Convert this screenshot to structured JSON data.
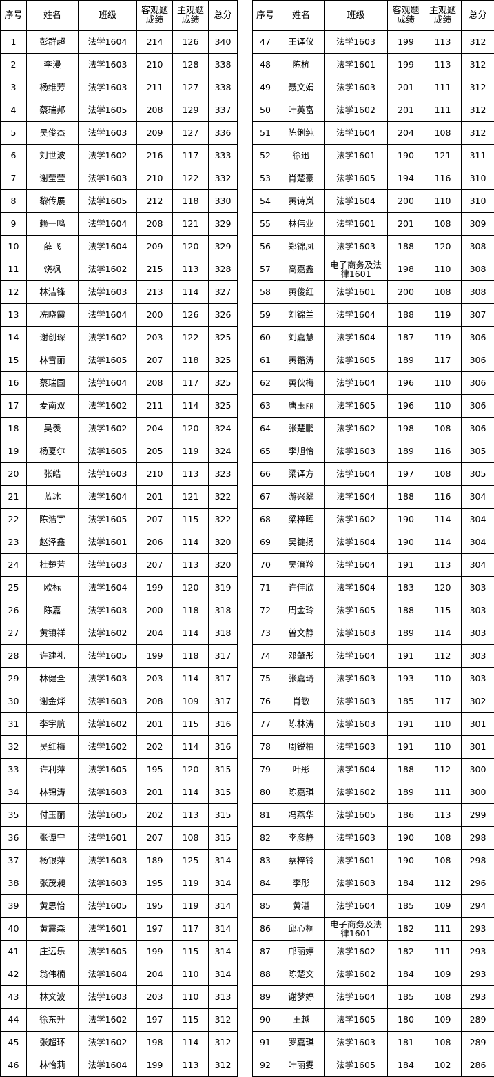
{
  "headers": [
    "序号",
    "姓名",
    "班级",
    "客观题成绩",
    "主观题成绩",
    "总分"
  ],
  "left_rows": [
    [
      "1",
      "彭群超",
      "法学1604",
      "214",
      "126",
      "340"
    ],
    [
      "2",
      "李漫",
      "法学1603",
      "210",
      "128",
      "338"
    ],
    [
      "3",
      "杨维芳",
      "法学1603",
      "211",
      "127",
      "338"
    ],
    [
      "4",
      "蔡瑞邦",
      "法学1605",
      "208",
      "129",
      "337"
    ],
    [
      "5",
      "吴俊杰",
      "法学1603",
      "209",
      "127",
      "336"
    ],
    [
      "6",
      "刘世波",
      "法学1602",
      "216",
      "117",
      "333"
    ],
    [
      "7",
      "谢莹莹",
      "法学1603",
      "210",
      "122",
      "332"
    ],
    [
      "8",
      "黎传展",
      "法学1605",
      "212",
      "118",
      "330"
    ],
    [
      "9",
      "赖一鸣",
      "法学1604",
      "208",
      "121",
      "329"
    ],
    [
      "10",
      "薛飞",
      "法学1604",
      "209",
      "120",
      "329"
    ],
    [
      "11",
      "饶枫",
      "法学1602",
      "215",
      "113",
      "328"
    ],
    [
      "12",
      "林洁锋",
      "法学1603",
      "213",
      "114",
      "327"
    ],
    [
      "13",
      "冼晓霞",
      "法学1604",
      "200",
      "126",
      "326"
    ],
    [
      "14",
      "谢创琛",
      "法学1602",
      "203",
      "122",
      "325"
    ],
    [
      "15",
      "林雪丽",
      "法学1605",
      "207",
      "118",
      "325"
    ],
    [
      "16",
      "蔡瑞国",
      "法学1604",
      "208",
      "117",
      "325"
    ],
    [
      "17",
      "麦南双",
      "法学1602",
      "211",
      "114",
      "325"
    ],
    [
      "18",
      "吴羡",
      "法学1602",
      "204",
      "120",
      "324"
    ],
    [
      "19",
      "杨夏尔",
      "法学1605",
      "205",
      "119",
      "324"
    ],
    [
      "20",
      "张皓",
      "法学1603",
      "210",
      "113",
      "323"
    ],
    [
      "21",
      "蓝冰",
      "法学1604",
      "201",
      "121",
      "322"
    ],
    [
      "22",
      "陈浩宇",
      "法学1605",
      "207",
      "115",
      "322"
    ],
    [
      "23",
      "赵泽鑫",
      "法学1601",
      "206",
      "114",
      "320"
    ],
    [
      "24",
      "杜楚芳",
      "法学1603",
      "207",
      "113",
      "320"
    ],
    [
      "25",
      "欧标",
      "法学1604",
      "199",
      "120",
      "319"
    ],
    [
      "26",
      "陈嘉",
      "法学1603",
      "200",
      "118",
      "318"
    ],
    [
      "27",
      "黄镇祥",
      "法学1602",
      "204",
      "114",
      "318"
    ],
    [
      "28",
      "许建礼",
      "法学1605",
      "199",
      "118",
      "317"
    ],
    [
      "29",
      "林健全",
      "法学1603",
      "203",
      "114",
      "317"
    ],
    [
      "30",
      "谢金烨",
      "法学1603",
      "208",
      "109",
      "317"
    ],
    [
      "31",
      "李宇航",
      "法学1602",
      "201",
      "115",
      "316"
    ],
    [
      "32",
      "吴红梅",
      "法学1602",
      "202",
      "114",
      "316"
    ],
    [
      "33",
      "许利萍",
      "法学1605",
      "195",
      "120",
      "315"
    ],
    [
      "34",
      "林锦涛",
      "法学1603",
      "201",
      "114",
      "315"
    ],
    [
      "35",
      "付玉丽",
      "法学1605",
      "202",
      "113",
      "315"
    ],
    [
      "36",
      "张谭宁",
      "法学1601",
      "207",
      "108",
      "315"
    ],
    [
      "37",
      "杨银萍",
      "法学1603",
      "189",
      "125",
      "314"
    ],
    [
      "38",
      "张茂昶",
      "法学1603",
      "195",
      "119",
      "314"
    ],
    [
      "39",
      "黄思怡",
      "法学1605",
      "195",
      "119",
      "314"
    ],
    [
      "40",
      "黄震森",
      "法学1601",
      "197",
      "117",
      "314"
    ],
    [
      "41",
      "庄远乐",
      "法学1605",
      "199",
      "115",
      "314"
    ],
    [
      "42",
      "翁伟楠",
      "法学1604",
      "204",
      "110",
      "314"
    ],
    [
      "43",
      "林文波",
      "法学1603",
      "203",
      "110",
      "313"
    ],
    [
      "44",
      "徐东升",
      "法学1602",
      "197",
      "115",
      "312"
    ],
    [
      "45",
      "张超环",
      "法学1602",
      "198",
      "114",
      "312"
    ],
    [
      "46",
      "林怡莉",
      "法学1604",
      "199",
      "113",
      "312"
    ]
  ],
  "right_rows": [
    [
      "47",
      "王译仪",
      "法学1603",
      "199",
      "113",
      "312"
    ],
    [
      "48",
      "陈杭",
      "法学1601",
      "199",
      "113",
      "312"
    ],
    [
      "49",
      "聂文娟",
      "法学1603",
      "201",
      "111",
      "312"
    ],
    [
      "50",
      "叶英富",
      "法学1602",
      "201",
      "111",
      "312"
    ],
    [
      "51",
      "陈俐纯",
      "法学1604",
      "204",
      "108",
      "312"
    ],
    [
      "52",
      "徐迅",
      "法学1601",
      "190",
      "121",
      "311"
    ],
    [
      "53",
      "肖楚豪",
      "法学1605",
      "194",
      "116",
      "310"
    ],
    [
      "54",
      "黄诗岚",
      "法学1604",
      "200",
      "110",
      "310"
    ],
    [
      "55",
      "林伟业",
      "法学1601",
      "201",
      "108",
      "309"
    ],
    [
      "56",
      "郑锦凤",
      "法学1603",
      "188",
      "120",
      "308"
    ],
    [
      "57",
      "高嘉鑫",
      "电子商务及法律1601",
      "198",
      "110",
      "308"
    ],
    [
      "58",
      "黄俊红",
      "法学1601",
      "200",
      "108",
      "308"
    ],
    [
      "59",
      "刘锦兰",
      "法学1604",
      "188",
      "119",
      "307"
    ],
    [
      "60",
      "刘嘉慧",
      "法学1604",
      "187",
      "119",
      "306"
    ],
    [
      "61",
      "黄锴涛",
      "法学1605",
      "189",
      "117",
      "306"
    ],
    [
      "62",
      "黄伙梅",
      "法学1604",
      "196",
      "110",
      "306"
    ],
    [
      "63",
      "唐玉丽",
      "法学1605",
      "196",
      "110",
      "306"
    ],
    [
      "64",
      "张楚鹏",
      "法学1602",
      "198",
      "108",
      "306"
    ],
    [
      "65",
      "李旭怡",
      "法学1603",
      "189",
      "116",
      "305"
    ],
    [
      "66",
      "梁译方",
      "法学1604",
      "197",
      "108",
      "305"
    ],
    [
      "67",
      "游兴翠",
      "法学1604",
      "188",
      "116",
      "304"
    ],
    [
      "68",
      "梁梓晖",
      "法学1602",
      "190",
      "114",
      "304"
    ],
    [
      "69",
      "吴锭扬",
      "法学1604",
      "190",
      "114",
      "304"
    ],
    [
      "70",
      "吴淯羚",
      "法学1604",
      "191",
      "113",
      "304"
    ],
    [
      "71",
      "许佳欣",
      "法学1604",
      "183",
      "120",
      "303"
    ],
    [
      "72",
      "周金玲",
      "法学1605",
      "188",
      "115",
      "303"
    ],
    [
      "73",
      "曾文静",
      "法学1603",
      "189",
      "114",
      "303"
    ],
    [
      "74",
      "邓肇彤",
      "法学1604",
      "191",
      "112",
      "303"
    ],
    [
      "75",
      "张嘉琦",
      "法学1603",
      "193",
      "110",
      "303"
    ],
    [
      "76",
      "肖敏",
      "法学1603",
      "185",
      "117",
      "302"
    ],
    [
      "77",
      "陈林涛",
      "法学1603",
      "191",
      "110",
      "301"
    ],
    [
      "78",
      "周锐柏",
      "法学1603",
      "191",
      "110",
      "301"
    ],
    [
      "79",
      "叶彤",
      "法学1604",
      "188",
      "112",
      "300"
    ],
    [
      "80",
      "陈嘉琪",
      "法学1602",
      "189",
      "111",
      "300"
    ],
    [
      "81",
      "冯燕华",
      "法学1605",
      "186",
      "113",
      "299"
    ],
    [
      "82",
      "李彦静",
      "法学1603",
      "190",
      "108",
      "298"
    ],
    [
      "83",
      "蔡梓铃",
      "法学1601",
      "190",
      "108",
      "298"
    ],
    [
      "84",
      "李彤",
      "法学1603",
      "184",
      "112",
      "296"
    ],
    [
      "85",
      "黄湛",
      "法学1604",
      "185",
      "109",
      "294"
    ],
    [
      "86",
      "邱心桐",
      "电子商务及法律1601",
      "182",
      "111",
      "293"
    ],
    [
      "87",
      "邝丽婷",
      "法学1602",
      "182",
      "111",
      "293"
    ],
    [
      "88",
      "陈楚文",
      "法学1602",
      "184",
      "109",
      "293"
    ],
    [
      "89",
      "谢梦婷",
      "法学1604",
      "185",
      "108",
      "293"
    ],
    [
      "90",
      "王越",
      "法学1605",
      "180",
      "109",
      "289"
    ],
    [
      "91",
      "罗嘉琪",
      "法学1603",
      "181",
      "108",
      "289"
    ],
    [
      "92",
      "叶丽雯",
      "法学1605",
      "184",
      "102",
      "286"
    ]
  ]
}
